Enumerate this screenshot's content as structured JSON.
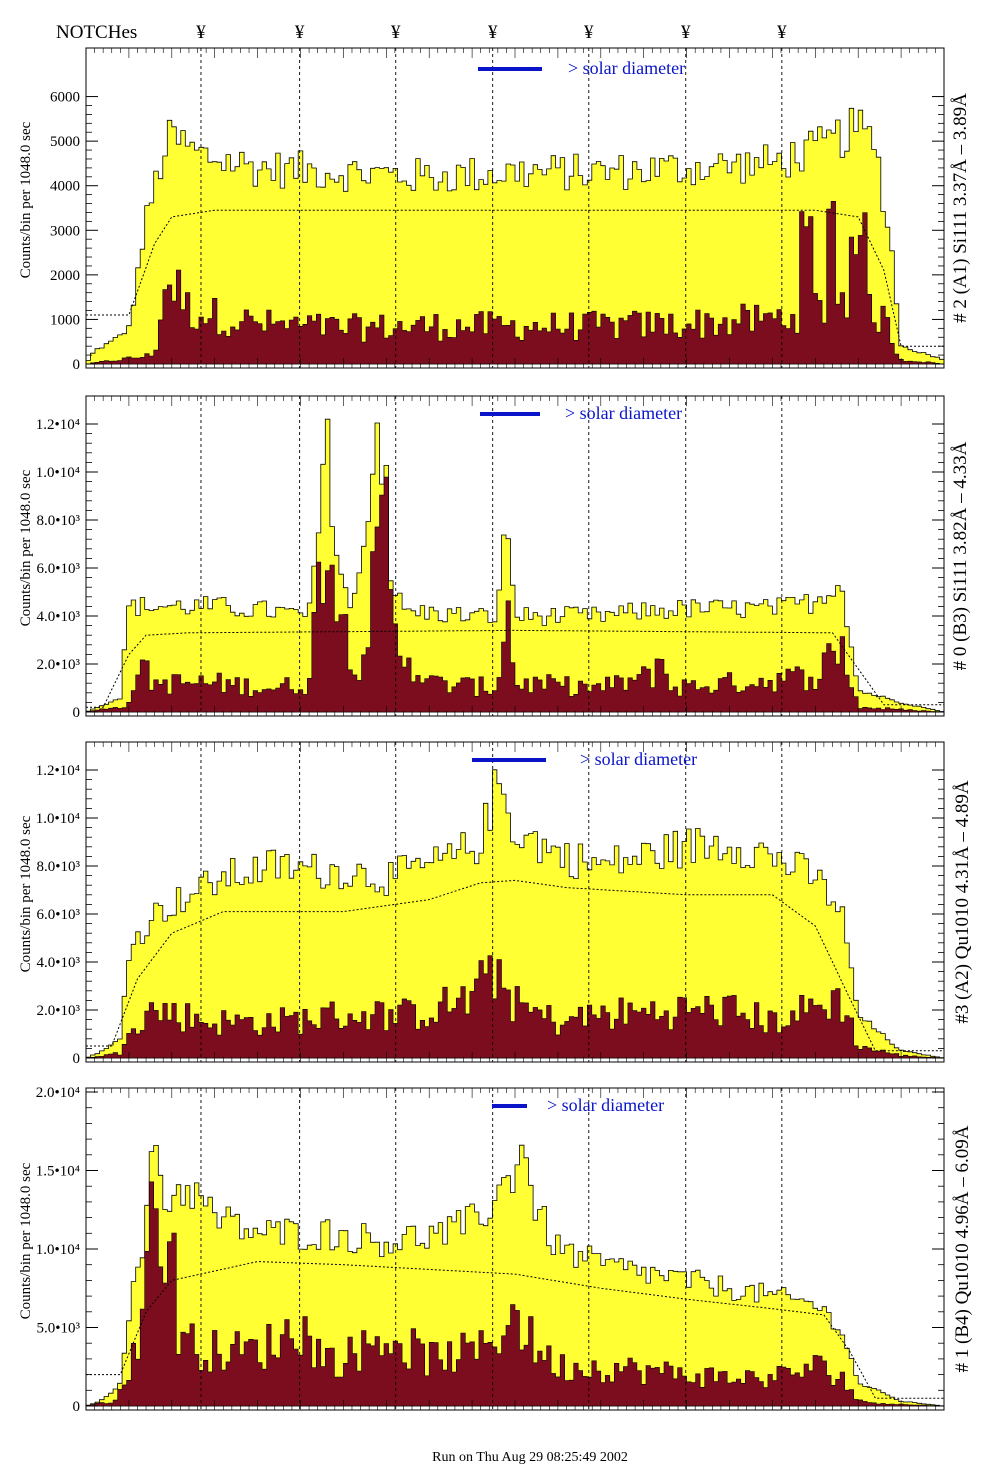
{
  "header": {
    "notch_label": "NOTCHes",
    "notch_symbol": "¥"
  },
  "footer": {
    "run_text": "Run on Thu Aug 29 08:25:49 2002"
  },
  "colors": {
    "yellow_fill": "#ffff33",
    "maroon_fill": "#7b0d1e",
    "legend_blue": "#0a14c8",
    "outline": "#000000"
  },
  "chart_data": [
    {
      "type": "area",
      "title": "",
      "right_label": "# 2 (A1) Si111  3.37Å – 3.89Å",
      "ylabel": "Counts/bin per   1048.0 sec",
      "legend": "> solar diameter",
      "yticks": [
        "0",
        "1000",
        "2000",
        "3000",
        "4000",
        "5000",
        "6000"
      ],
      "ylim": [
        0,
        7000
      ],
      "upper_anchors": [
        [
          0.0,
          0
        ],
        [
          0.01,
          300
        ],
        [
          0.03,
          500
        ],
        [
          0.05,
          800
        ],
        [
          0.07,
          3200
        ],
        [
          0.09,
          4700
        ],
        [
          0.1,
          5100
        ],
        [
          0.13,
          4700
        ],
        [
          0.2,
          4400
        ],
        [
          0.3,
          4300
        ],
        [
          0.4,
          4200
        ],
        [
          0.5,
          4300
        ],
        [
          0.6,
          4300
        ],
        [
          0.7,
          4400
        ],
        [
          0.8,
          4500
        ],
        [
          0.85,
          4800
        ],
        [
          0.9,
          5300
        ],
        [
          0.92,
          4900
        ],
        [
          0.94,
          2400
        ],
        [
          0.95,
          400
        ],
        [
          1.0,
          100
        ]
      ],
      "lower_anchors": [
        [
          0.0,
          0
        ],
        [
          0.08,
          200
        ],
        [
          0.09,
          1600
        ],
        [
          0.1,
          1900
        ],
        [
          0.12,
          1200
        ],
        [
          0.2,
          900
        ],
        [
          0.3,
          800
        ],
        [
          0.4,
          850
        ],
        [
          0.5,
          850
        ],
        [
          0.6,
          850
        ],
        [
          0.7,
          900
        ],
        [
          0.8,
          1000
        ],
        [
          0.88,
          1400
        ],
        [
          0.9,
          1500
        ],
        [
          0.93,
          1000
        ],
        [
          0.95,
          100
        ],
        [
          1.0,
          0
        ]
      ],
      "peaks": [
        [
          0.84,
          1800,
          0.006
        ],
        [
          0.87,
          2300,
          0.006
        ],
        [
          0.9,
          1500,
          0.008
        ]
      ],
      "dotted_anchors": [
        [
          0.05,
          1100
        ],
        [
          0.08,
          2700
        ],
        [
          0.1,
          3300
        ],
        [
          0.15,
          3450
        ],
        [
          0.5,
          3450
        ],
        [
          0.85,
          3450
        ],
        [
          0.9,
          3300
        ],
        [
          0.93,
          2100
        ],
        [
          0.95,
          400
        ]
      ],
      "series": [
        {
          "name": "",
          "values_desc": ""
        }
      ]
    },
    {
      "type": "area",
      "title": "",
      "right_label": "# 0 (B3) Si111  3.82Å – 4.33Å",
      "ylabel": "Counts/bin per   1048.0 sec",
      "legend": "> solar diameter",
      "yticks": [
        "0",
        "2.0•10³",
        "4.0•10³",
        "6.0•10³",
        "8.0•10³",
        "1.0•10⁴",
        "1.2•10⁴"
      ],
      "ylim": [
        0,
        13000
      ],
      "upper_anchors": [
        [
          0.0,
          0
        ],
        [
          0.02,
          300
        ],
        [
          0.04,
          600
        ],
        [
          0.05,
          4400
        ],
        [
          0.15,
          4400
        ],
        [
          0.22,
          4200
        ],
        [
          0.26,
          4000
        ],
        [
          0.27,
          7000
        ],
        [
          0.28,
          12000
        ],
        [
          0.29,
          7000
        ],
        [
          0.31,
          4000
        ],
        [
          0.32,
          6000
        ],
        [
          0.34,
          12000
        ],
        [
          0.35,
          6000
        ],
        [
          0.37,
          4200
        ],
        [
          0.45,
          4000
        ],
        [
          0.48,
          4000
        ],
        [
          0.49,
          8500
        ],
        [
          0.5,
          4000
        ],
        [
          0.6,
          4000
        ],
        [
          0.65,
          4200
        ],
        [
          0.7,
          4300
        ],
        [
          0.8,
          4300
        ],
        [
          0.85,
          4600
        ],
        [
          0.88,
          5500
        ],
        [
          0.9,
          900
        ],
        [
          0.95,
          400
        ],
        [
          1.0,
          0
        ]
      ],
      "lower_anchors": [
        [
          0.0,
          0
        ],
        [
          0.05,
          300
        ],
        [
          0.06,
          2000
        ],
        [
          0.08,
          1200
        ],
        [
          0.15,
          1200
        ],
        [
          0.22,
          1000
        ],
        [
          0.26,
          1200
        ],
        [
          0.28,
          8500
        ],
        [
          0.3,
          3500
        ],
        [
          0.32,
          2000
        ],
        [
          0.34,
          6000
        ],
        [
          0.35,
          8000
        ],
        [
          0.36,
          3000
        ],
        [
          0.4,
          1200
        ],
        [
          0.48,
          1000
        ],
        [
          0.49,
          5000
        ],
        [
          0.5,
          1200
        ],
        [
          0.6,
          1000
        ],
        [
          0.66,
          1500
        ],
        [
          0.67,
          2500
        ],
        [
          0.68,
          1000
        ],
        [
          0.75,
          1200
        ],
        [
          0.85,
          1500
        ],
        [
          0.88,
          2900
        ],
        [
          0.9,
          200
        ],
        [
          0.95,
          100
        ],
        [
          1.0,
          0
        ]
      ],
      "peaks": [],
      "dotted_anchors": [
        [
          0.02,
          200
        ],
        [
          0.05,
          2400
        ],
        [
          0.07,
          3200
        ],
        [
          0.12,
          3300
        ],
        [
          0.5,
          3400
        ],
        [
          0.87,
          3300
        ],
        [
          0.9,
          1800
        ],
        [
          0.93,
          300
        ]
      ],
      "series": [
        {
          "name": "",
          "values_desc": ""
        }
      ]
    },
    {
      "type": "area",
      "title": "",
      "right_label": "#3 (A2) Qu1010  4.31Å – 4.89Å",
      "ylabel": "Counts/bin per   1048.0 sec",
      "legend": "> solar diameter",
      "yticks": [
        "0",
        "2.0•10³",
        "4.0•10³",
        "6.0•10³",
        "8.0•10³",
        "1.0•10⁴",
        "1.2•10⁴"
      ],
      "ylim": [
        0,
        13000
      ],
      "upper_anchors": [
        [
          0.0,
          0
        ],
        [
          0.02,
          300
        ],
        [
          0.04,
          800
        ],
        [
          0.05,
          4500
        ],
        [
          0.08,
          6000
        ],
        [
          0.12,
          6800
        ],
        [
          0.16,
          7500
        ],
        [
          0.22,
          8000
        ],
        [
          0.27,
          7800
        ],
        [
          0.3,
          7800
        ],
        [
          0.35,
          7500
        ],
        [
          0.42,
          8200
        ],
        [
          0.46,
          9000
        ],
        [
          0.48,
          11500
        ],
        [
          0.5,
          9500
        ],
        [
          0.55,
          8500
        ],
        [
          0.6,
          8000
        ],
        [
          0.7,
          8800
        ],
        [
          0.75,
          9000
        ],
        [
          0.8,
          8400
        ],
        [
          0.85,
          7500
        ],
        [
          0.88,
          6200
        ],
        [
          0.9,
          1800
        ],
        [
          0.95,
          300
        ],
        [
          1.0,
          0
        ]
      ],
      "lower_anchors": [
        [
          0.0,
          0
        ],
        [
          0.04,
          200
        ],
        [
          0.05,
          1500
        ],
        [
          0.08,
          2000
        ],
        [
          0.15,
          1500
        ],
        [
          0.22,
          1500
        ],
        [
          0.3,
          1800
        ],
        [
          0.38,
          1800
        ],
        [
          0.45,
          2500
        ],
        [
          0.48,
          3800
        ],
        [
          0.5,
          2200
        ],
        [
          0.55,
          1500
        ],
        [
          0.6,
          1800
        ],
        [
          0.7,
          2000
        ],
        [
          0.75,
          2000
        ],
        [
          0.8,
          1500
        ],
        [
          0.88,
          2500
        ],
        [
          0.9,
          500
        ],
        [
          0.95,
          100
        ],
        [
          1.0,
          0
        ]
      ],
      "peaks": [],
      "dotted_anchors": [
        [
          0.03,
          500
        ],
        [
          0.06,
          3300
        ],
        [
          0.1,
          5200
        ],
        [
          0.16,
          6100
        ],
        [
          0.3,
          6100
        ],
        [
          0.4,
          6600
        ],
        [
          0.46,
          7300
        ],
        [
          0.5,
          7400
        ],
        [
          0.56,
          7100
        ],
        [
          0.7,
          6800
        ],
        [
          0.8,
          6800
        ],
        [
          0.85,
          5500
        ],
        [
          0.89,
          2500
        ],
        [
          0.92,
          300
        ]
      ],
      "series": [
        {
          "name": "",
          "values_desc": ""
        }
      ]
    },
    {
      "type": "area",
      "title": "",
      "right_label": "# 1 (B4) Qu1010 4.96Å – 6.09Å",
      "ylabel": "Counts/bin per   1048.0 sec",
      "legend": "> solar diameter",
      "yticks": [
        "0",
        "5.0•10³",
        "1.0•10⁴",
        "1.5•10⁴",
        "2.0•10⁴"
      ],
      "ylim": [
        0,
        20000
      ],
      "upper_anchors": [
        [
          0.0,
          0
        ],
        [
          0.02,
          400
        ],
        [
          0.04,
          1500
        ],
        [
          0.05,
          6000
        ],
        [
          0.07,
          11000
        ],
        [
          0.08,
          18000
        ],
        [
          0.09,
          13000
        ],
        [
          0.12,
          14000
        ],
        [
          0.15,
          12000
        ],
        [
          0.2,
          11000
        ],
        [
          0.28,
          11000
        ],
        [
          0.35,
          10500
        ],
        [
          0.42,
          11000
        ],
        [
          0.46,
          12000
        ],
        [
          0.5,
          15000
        ],
        [
          0.51,
          17500
        ],
        [
          0.52,
          13000
        ],
        [
          0.55,
          10000
        ],
        [
          0.6,
          9000
        ],
        [
          0.7,
          8000
        ],
        [
          0.8,
          7000
        ],
        [
          0.85,
          6500
        ],
        [
          0.88,
          5000
        ],
        [
          0.9,
          1500
        ],
        [
          0.95,
          300
        ],
        [
          1.0,
          0
        ]
      ],
      "lower_anchors": [
        [
          0.0,
          0
        ],
        [
          0.03,
          300
        ],
        [
          0.05,
          1500
        ],
        [
          0.07,
          8000
        ],
        [
          0.08,
          13000
        ],
        [
          0.09,
          6000
        ],
        [
          0.12,
          4000
        ],
        [
          0.15,
          3500
        ],
        [
          0.2,
          3500
        ],
        [
          0.25,
          5000
        ],
        [
          0.28,
          3000
        ],
        [
          0.3,
          3000
        ],
        [
          0.35,
          4500
        ],
        [
          0.4,
          3000
        ],
        [
          0.46,
          3500
        ],
        [
          0.5,
          6000
        ],
        [
          0.52,
          4000
        ],
        [
          0.55,
          2500
        ],
        [
          0.6,
          2500
        ],
        [
          0.7,
          2000
        ],
        [
          0.75,
          1800
        ],
        [
          0.8,
          1800
        ],
        [
          0.85,
          2500
        ],
        [
          0.88,
          2000
        ],
        [
          0.9,
          300
        ],
        [
          0.95,
          100
        ],
        [
          1.0,
          0
        ]
      ],
      "peaks": [
        [
          0.08,
          5000,
          0.006
        ],
        [
          0.1,
          6000,
          0.006
        ]
      ],
      "dotted_anchors": [
        [
          0.04,
          2000
        ],
        [
          0.07,
          6000
        ],
        [
          0.1,
          8000
        ],
        [
          0.2,
          9200
        ],
        [
          0.3,
          9000
        ],
        [
          0.5,
          8400
        ],
        [
          0.6,
          7500
        ],
        [
          0.7,
          6800
        ],
        [
          0.8,
          6200
        ],
        [
          0.86,
          5800
        ],
        [
          0.89,
          3500
        ],
        [
          0.92,
          500
        ]
      ],
      "series": [
        {
          "name": "",
          "values_desc": ""
        }
      ]
    }
  ],
  "notch_positions": [
    0.134,
    0.249,
    0.361,
    0.474,
    0.586,
    0.699,
    0.811
  ]
}
